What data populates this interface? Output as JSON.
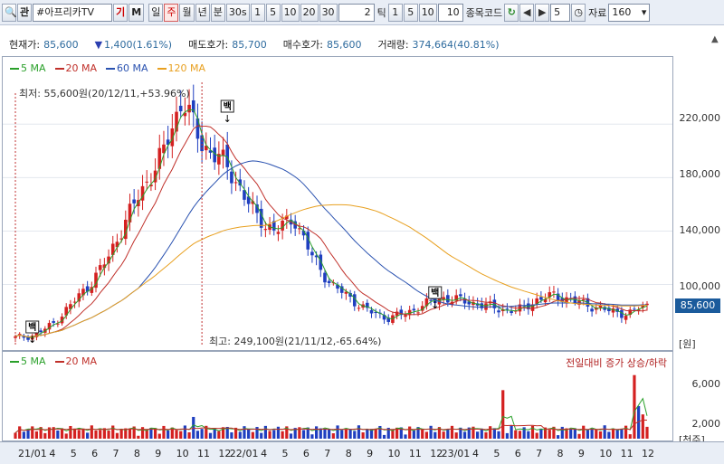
{
  "toolbar": {
    "search_icon_label": "Q",
    "tag": "관",
    "stock_name": "#아프리카TV",
    "gi": "기",
    "m": "M",
    "periods": [
      "일",
      "주",
      "월",
      "년",
      "분",
      "30s",
      "1",
      "5",
      "10",
      "20",
      "30"
    ],
    "selected_period": "주",
    "tick_value": "2",
    "tick_label": "틱",
    "tick_intervals": [
      "1",
      "5",
      "10"
    ],
    "tick_count": "10",
    "code_label": "종목코드",
    "count_value": "5",
    "data_label": "자료",
    "data_count": "160"
  },
  "info": {
    "current_label": "현재가:",
    "current_value": "85,600",
    "change_value": "1,400(1.61%)",
    "ask_label": "매도호가:",
    "ask_value": "85,700",
    "bid_label": "매수호가:",
    "bid_value": "85,600",
    "volume_label": "거래량:",
    "volume_value": "374,664(40.81%)"
  },
  "price_legend": [
    {
      "label": "5 MA",
      "color": "#2aa02a"
    },
    {
      "label": "20 MA",
      "color": "#c0302a"
    },
    {
      "label": "60 MA",
      "color": "#2a52b0"
    },
    {
      "label": "120 MA",
      "color": "#e8a020"
    }
  ],
  "volume_legend": [
    {
      "label": "5 MA",
      "color": "#2aa02a"
    },
    {
      "label": "20 MA",
      "color": "#c0302a"
    }
  ],
  "annotations": {
    "low_note": "최저: 55,600원(20/12/11,+53.96%)",
    "high_note": "최고: 249,100원(21/11/12,-65.64%)",
    "volume_note": "전일대비 증가 상승/하락",
    "marker_label": "백"
  },
  "price_axis": {
    "ticks": [
      "220,000",
      "180,000",
      "140,000",
      "100,000"
    ],
    "current_badge": "85,600",
    "unit": "[원]"
  },
  "volume_axis": {
    "ticks": [
      "6,000",
      "2,000"
    ],
    "unit": "[천주]"
  },
  "x_axis": {
    "labels": [
      "21/01",
      "4",
      "5",
      "6",
      "7",
      "8",
      "9",
      "10",
      "11",
      "12",
      "22/01",
      "4",
      "5",
      "6",
      "7",
      "8",
      "9",
      "10",
      "11",
      "12",
      "23/01",
      "4",
      "5",
      "6",
      "7",
      "8",
      "9",
      "10",
      "11",
      "12"
    ]
  },
  "chart_data": {
    "type": "candlestick",
    "price_range": [
      55000,
      250000
    ],
    "volume_range_thousands": [
      0,
      8000
    ],
    "approx_close_path": [
      60000,
      62000,
      70000,
      85000,
      100000,
      120000,
      150000,
      175000,
      200000,
      240000,
      205000,
      195000,
      175000,
      150000,
      140000,
      150000,
      120000,
      100000,
      90000,
      80000,
      75000,
      78000,
      85000,
      90000,
      88000,
      85000,
      82000,
      80000,
      88000,
      92000,
      88000,
      84000,
      80000,
      78000,
      85600
    ],
    "high": 249100,
    "low": 55600,
    "current": 85600
  }
}
